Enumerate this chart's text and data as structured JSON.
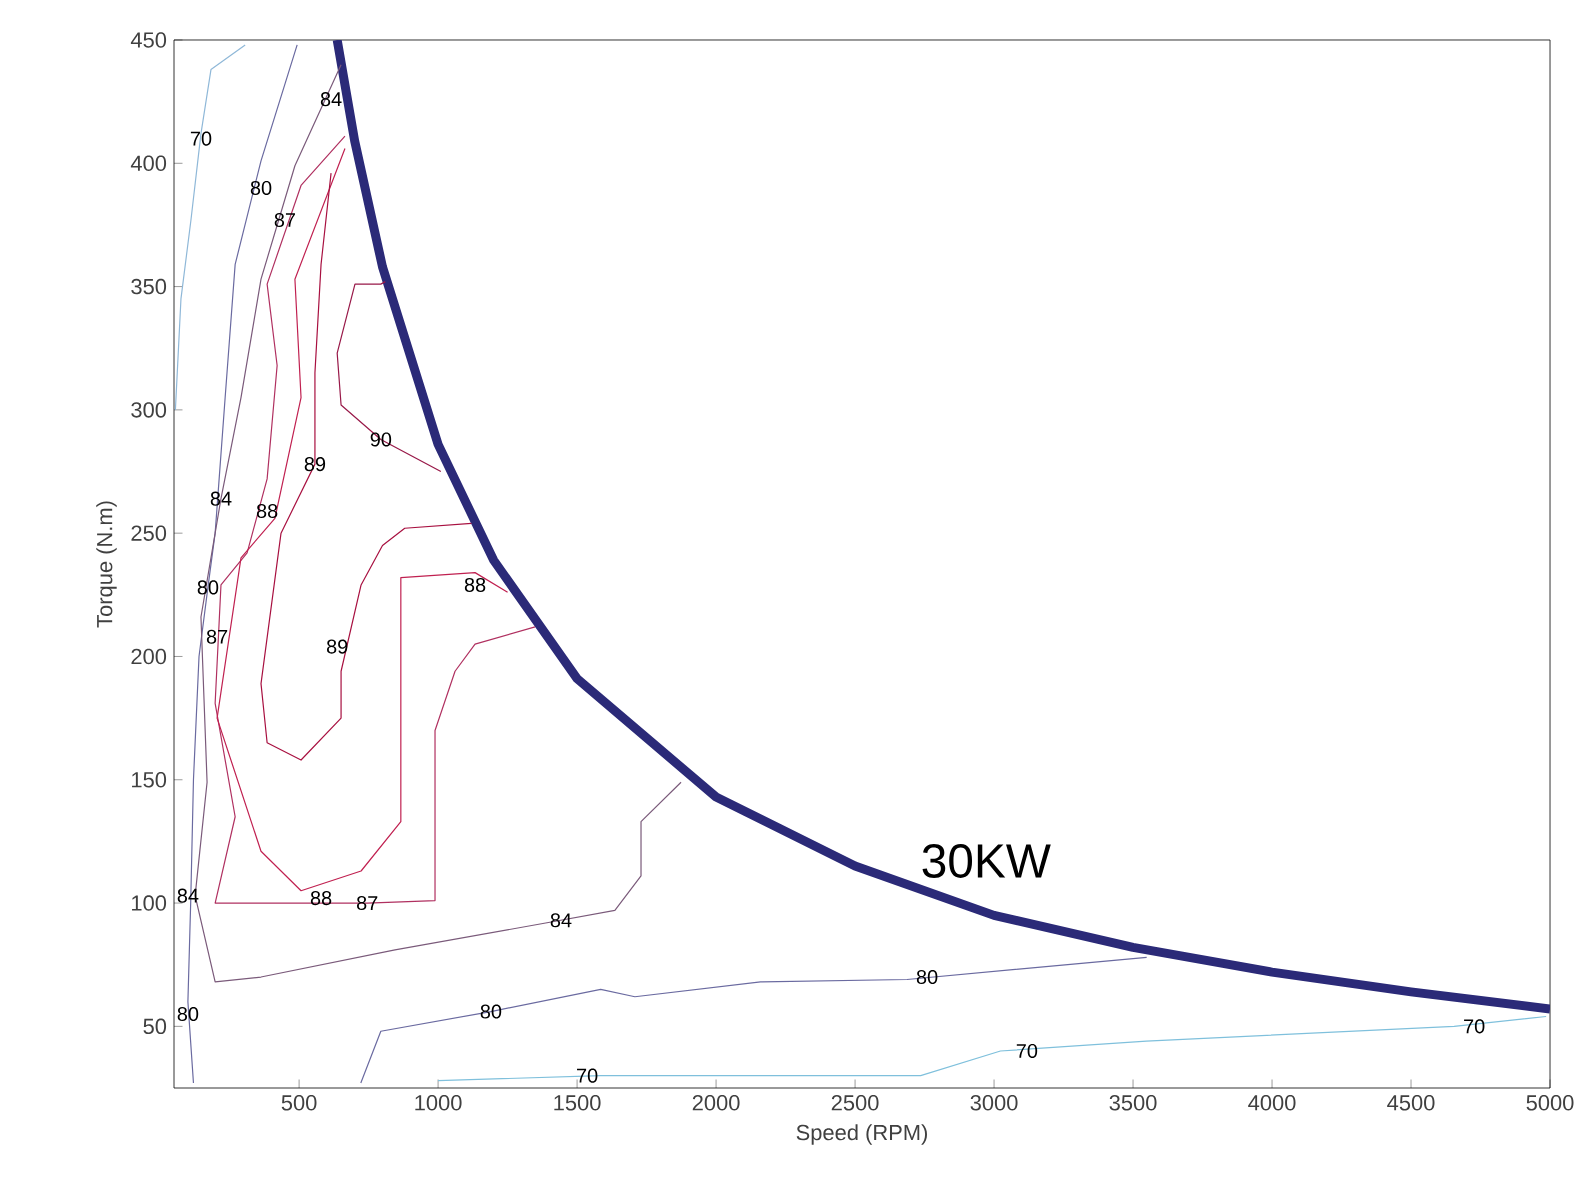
{
  "chart_data": {
    "type": "line",
    "xlabel": "Speed (RPM)",
    "ylabel": "Torque (N.m)",
    "xlim": [
      50,
      5000
    ],
    "ylim": [
      25,
      450
    ],
    "xticks": [
      500,
      1000,
      1500,
      2000,
      2500,
      3000,
      3500,
      4000,
      4500,
      5000
    ],
    "yticks": [
      50,
      100,
      150,
      200,
      250,
      300,
      350,
      400,
      450
    ],
    "series": [
      {
        "name": "30KW",
        "color": "#2b2a78",
        "x": [
          637,
          700,
          800,
          1000,
          1200,
          1500,
          2000,
          2500,
          3000,
          3500,
          4000,
          4500,
          5000
        ],
        "values": [
          450,
          409,
          358,
          286,
          239,
          191,
          143,
          115,
          95,
          82,
          72,
          64,
          57
        ]
      },
      {
        "color": "#8fb8d8",
        "x": [
          306,
          183,
          147,
          111,
          75,
          55
        ],
        "values": [
          448,
          438,
          412,
          377,
          345,
          300
        ]
      },
      {
        "color": "#7fc0dc",
        "x": [
          1000,
          1585,
          2427,
          2736,
          3023,
          3548,
          4655,
          4986
        ],
        "values": [
          28,
          30,
          30,
          30,
          40,
          44,
          50,
          54
        ]
      },
      {
        "color": "#6a6aa0",
        "x": [
          493,
          363,
          270,
          234,
          198,
          172,
          140,
          120,
          110,
          100,
          120
        ],
        "values": [
          448,
          401,
          359,
          305,
          250,
          228,
          200,
          150,
          100,
          60,
          27
        ]
      },
      {
        "color": "#6a6aa0",
        "x": [
          722,
          794,
          1190,
          1585,
          1708,
          2160,
          2687,
          3549
        ],
        "values": [
          27,
          48,
          56,
          65,
          62,
          68,
          69,
          78
        ]
      },
      {
        "color": "#7a5a7a",
        "x": [
          651,
          485,
          363,
          291,
          219,
          147,
          169,
          126,
          198,
          363,
          845,
          1392,
          1636,
          1730,
          1730,
          1874
        ],
        "values": [
          440,
          399,
          353,
          305,
          264,
          216,
          149,
          103,
          68,
          70,
          81,
          92,
          97,
          111,
          133,
          149
        ]
      },
      {
        "color": "#b03060",
        "x": [
          665,
          507,
          385,
          421,
          385,
          313,
          219,
          198,
          270,
          198,
          745,
          989,
          989,
          1061,
          1133,
          1349
        ],
        "values": [
          411,
          391,
          351,
          318,
          272,
          242,
          229,
          181,
          135,
          100,
          100,
          101,
          170,
          194,
          205,
          212
        ]
      },
      {
        "color": "#c02050",
        "x": [
          665,
          485,
          507,
          413,
          291,
          205,
          363,
          507,
          723,
          866,
          866,
          1133,
          1250
        ],
        "values": [
          406,
          353,
          305,
          256,
          240,
          175,
          121,
          105,
          113,
          133,
          232,
          234,
          226
        ]
      },
      {
        "color": "#a81040",
        "x": [
          615,
          579,
          557,
          557,
          435,
          363,
          385,
          507,
          651,
          651,
          723,
          800,
          880,
          1120
        ],
        "values": [
          396,
          359,
          315,
          278,
          250,
          189,
          165,
          158,
          175,
          194,
          229,
          245,
          252,
          254
        ]
      },
      {
        "color": "#981848",
        "x": [
          810,
          794,
          701,
          637,
          651,
          794,
          1010
        ],
        "values": [
          352,
          351,
          351,
          323,
          302,
          288,
          275
        ]
      }
    ],
    "annotations": [
      {
        "text": "70",
        "x": 147,
        "y": 410
      },
      {
        "text": "80",
        "x": 363,
        "y": 390
      },
      {
        "text": "84",
        "x": 615,
        "y": 426
      },
      {
        "text": "87",
        "x": 449,
        "y": 377
      },
      {
        "text": "84",
        "x": 219,
        "y": 264
      },
      {
        "text": "88",
        "x": 385,
        "y": 259
      },
      {
        "text": "89",
        "x": 557,
        "y": 278
      },
      {
        "text": "90",
        "x": 794,
        "y": 288
      },
      {
        "text": "80",
        "x": 172,
        "y": 228
      },
      {
        "text": "87",
        "x": 205,
        "y": 208
      },
      {
        "text": "88",
        "x": 1133,
        "y": 229
      },
      {
        "text": "89",
        "x": 637,
        "y": 204
      },
      {
        "text": "88",
        "x": 579,
        "y": 102
      },
      {
        "text": "87",
        "x": 745,
        "y": 100
      },
      {
        "text": "84",
        "x": 1442,
        "y": 93
      },
      {
        "text": "84",
        "x": 100,
        "y": 103
      },
      {
        "text": "80",
        "x": 100,
        "y": 55
      },
      {
        "text": "80",
        "x": 1190,
        "y": 56
      },
      {
        "text": "80",
        "x": 2759,
        "y": 70
      },
      {
        "text": "70",
        "x": 1536,
        "y": 30
      },
      {
        "text": "70",
        "x": 3118,
        "y": 40
      },
      {
        "text": "70",
        "x": 4727,
        "y": 50
      }
    ]
  }
}
